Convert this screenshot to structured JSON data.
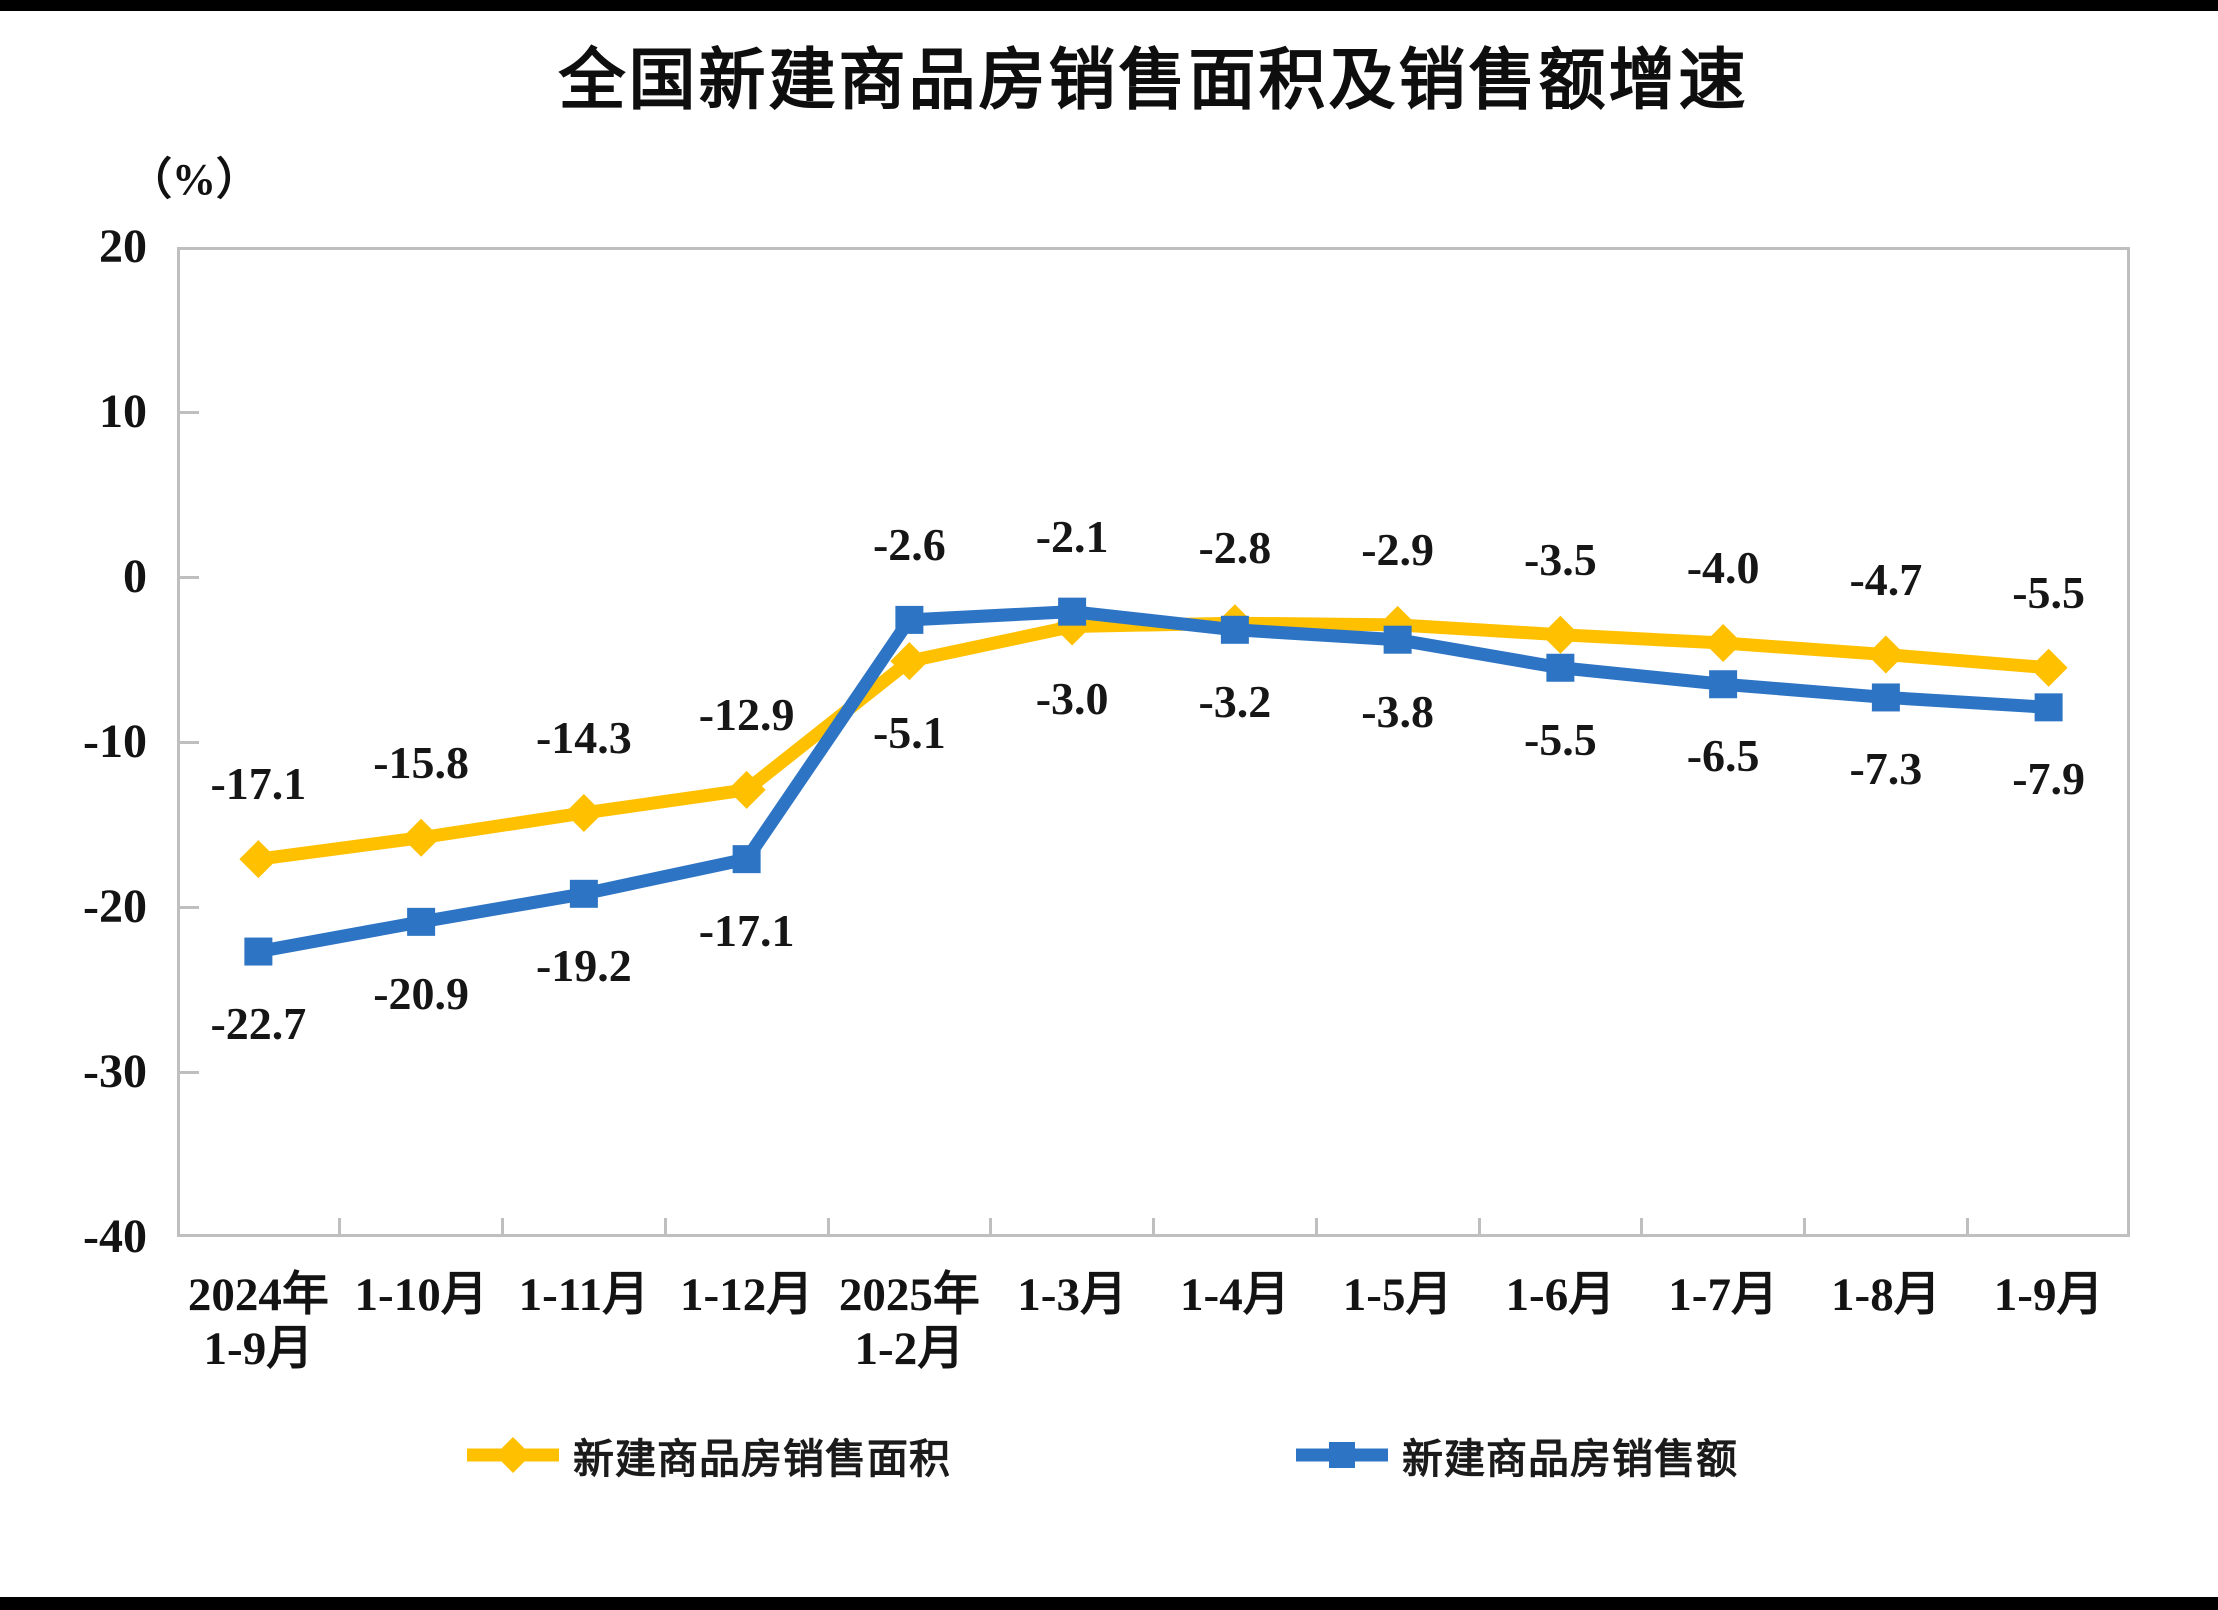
{
  "title": "全国新建商品房销售面积及销售额增速",
  "unit_label": "（%）",
  "colors": {
    "series_area": "#FFC000",
    "series_amount": "#2E74C4",
    "axis": "#BFBFBF",
    "text": "#1A1A1A"
  },
  "chart_data": {
    "type": "line",
    "title": "全国新建商品房销售面积及销售额增速",
    "ylabel": "（%）",
    "ylim": [
      -40,
      20
    ],
    "yticks": [
      20,
      10,
      0,
      -10,
      -20,
      -30,
      -40
    ],
    "grid": false,
    "legend_position": "bottom",
    "categories": [
      "2024年\n1-9月",
      "1-10月",
      "1-11月",
      "1-12月",
      "2025年\n1-2月",
      "1-3月",
      "1-4月",
      "1-5月",
      "1-6月",
      "1-7月",
      "1-8月",
      "1-9月"
    ],
    "series": [
      {
        "name": "新建商品房销售面积",
        "color": "#FFC000",
        "marker": "diamond",
        "values": [
          -17.1,
          -15.8,
          -14.3,
          -12.9,
          -5.1,
          -3.0,
          -2.8,
          -2.9,
          -3.5,
          -4.0,
          -4.7,
          -5.5
        ],
        "label_positions": [
          "above",
          "above",
          "above",
          "above",
          "below",
          "below",
          "above",
          "above",
          "above",
          "above",
          "above",
          "above"
        ]
      },
      {
        "name": "新建商品房销售额",
        "color": "#2E74C4",
        "marker": "square",
        "values": [
          -22.7,
          -20.9,
          -19.2,
          -17.1,
          -2.6,
          -2.1,
          -3.2,
          -3.8,
          -5.5,
          -6.5,
          -7.3,
          -7.9
        ],
        "label_positions": [
          "below",
          "below",
          "below",
          "below",
          "above",
          "above",
          "below",
          "below",
          "below",
          "below",
          "below",
          "below"
        ]
      }
    ]
  }
}
